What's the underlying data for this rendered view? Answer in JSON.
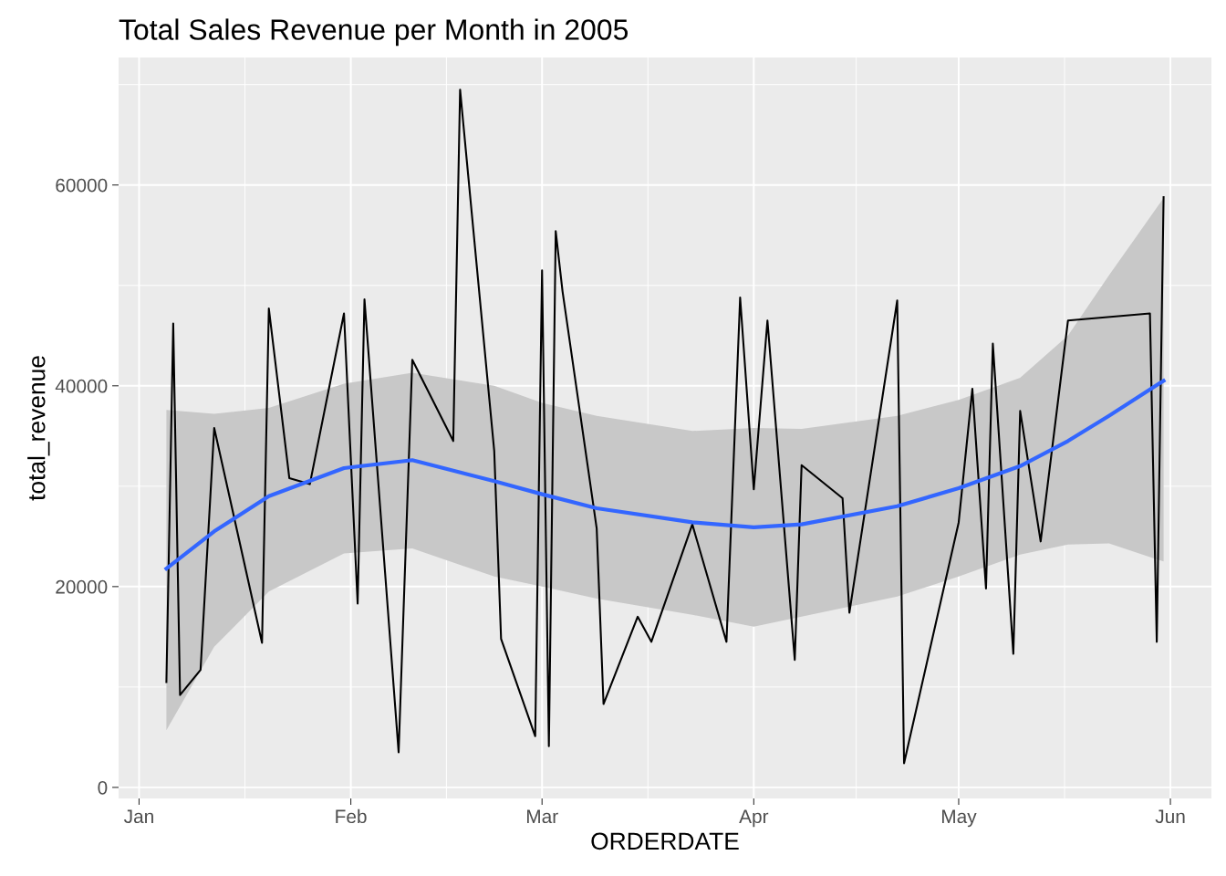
{
  "chart_data": {
    "type": "line",
    "title": "Total Sales Revenue per Month in 2005",
    "xlabel": "ORDERDATE",
    "ylabel": "total_revenue",
    "series": [
      {
        "color": "#000000",
        "x": [
          "2005-01-05",
          "2005-01-06",
          "2005-01-07",
          "2005-01-10",
          "2005-01-12",
          "2005-01-19",
          "2005-01-20",
          "2005-01-23",
          "2005-01-26",
          "2005-01-31",
          "2005-02-02",
          "2005-02-03",
          "2005-02-08",
          "2005-02-10",
          "2005-02-16",
          "2005-02-17",
          "2005-02-22",
          "2005-02-23",
          "2005-02-28",
          "2005-03-01",
          "2005-03-02",
          "2005-03-03",
          "2005-03-04",
          "2005-03-09",
          "2005-03-10",
          "2005-03-15",
          "2005-03-17",
          "2005-03-23",
          "2005-03-28",
          "2005-03-30",
          "2005-04-01",
          "2005-04-03",
          "2005-04-07",
          "2005-04-08",
          "2005-04-14",
          "2005-04-15",
          "2005-04-22",
          "2005-04-23",
          "2005-05-01",
          "2005-05-03",
          "2005-05-05",
          "2005-05-06",
          "2005-05-09",
          "2005-05-10",
          "2005-05-13",
          "2005-05-17",
          "2005-05-29",
          "2005-05-30",
          "2005-05-31"
        ],
        "values": [
          10500,
          46200,
          9200,
          11700,
          35800,
          14400,
          47700,
          30800,
          30200,
          47200,
          18300,
          48600,
          3500,
          42600,
          34500,
          69500,
          33500,
          14800,
          5100,
          51500,
          4100,
          55400,
          49400,
          25800,
          8300,
          17000,
          14500,
          26200,
          14500,
          48800,
          29700,
          46500,
          12700,
          32100,
          28800,
          17400,
          48500,
          2400,
          26400,
          39700,
          19800,
          44200,
          13300,
          37500,
          24500,
          46500,
          47200,
          14500,
          58800
        ]
      },
      {
        "color": "#3366ff",
        "x": [
          "2005-01-05",
          "2005-01-12",
          "2005-01-20",
          "2005-01-31",
          "2005-02-10",
          "2005-02-22",
          "2005-03-01",
          "2005-03-09",
          "2005-03-23",
          "2005-04-01",
          "2005-04-08",
          "2005-04-22",
          "2005-05-01",
          "2005-05-10",
          "2005-05-17",
          "2005-05-23",
          "2005-05-31"
        ],
        "values": [
          21800,
          25500,
          29000,
          31800,
          32600,
          30500,
          29200,
          27800,
          26400,
          25900,
          26200,
          28000,
          29800,
          32000,
          34500,
          37000,
          40500
        ],
        "lower": [
          5700,
          14000,
          19500,
          23300,
          23800,
          21000,
          20000,
          18800,
          17200,
          16000,
          17000,
          19000,
          21000,
          23200,
          24200,
          24300,
          22500
        ],
        "upper": [
          37600,
          37200,
          37800,
          40200,
          41300,
          40000,
          38300,
          37000,
          35500,
          35800,
          35700,
          37000,
          38600,
          40800,
          45000,
          51000,
          58700
        ]
      }
    ],
    "xlim": [
      "2004-12-29",
      "2005-06-07"
    ],
    "xticks": [
      {
        "value": "2005-01-01",
        "label": "Jan"
      },
      {
        "value": "2005-02-01",
        "label": "Feb"
      },
      {
        "value": "2005-03-01",
        "label": "Mar"
      },
      {
        "value": "2005-04-01",
        "label": "Apr"
      },
      {
        "value": "2005-05-01",
        "label": "May"
      },
      {
        "value": "2005-06-01",
        "label": "Jun"
      }
    ],
    "ylim": [
      -1100,
      72700
    ],
    "yticks": [
      0,
      20000,
      40000,
      60000
    ],
    "grid": true
  }
}
